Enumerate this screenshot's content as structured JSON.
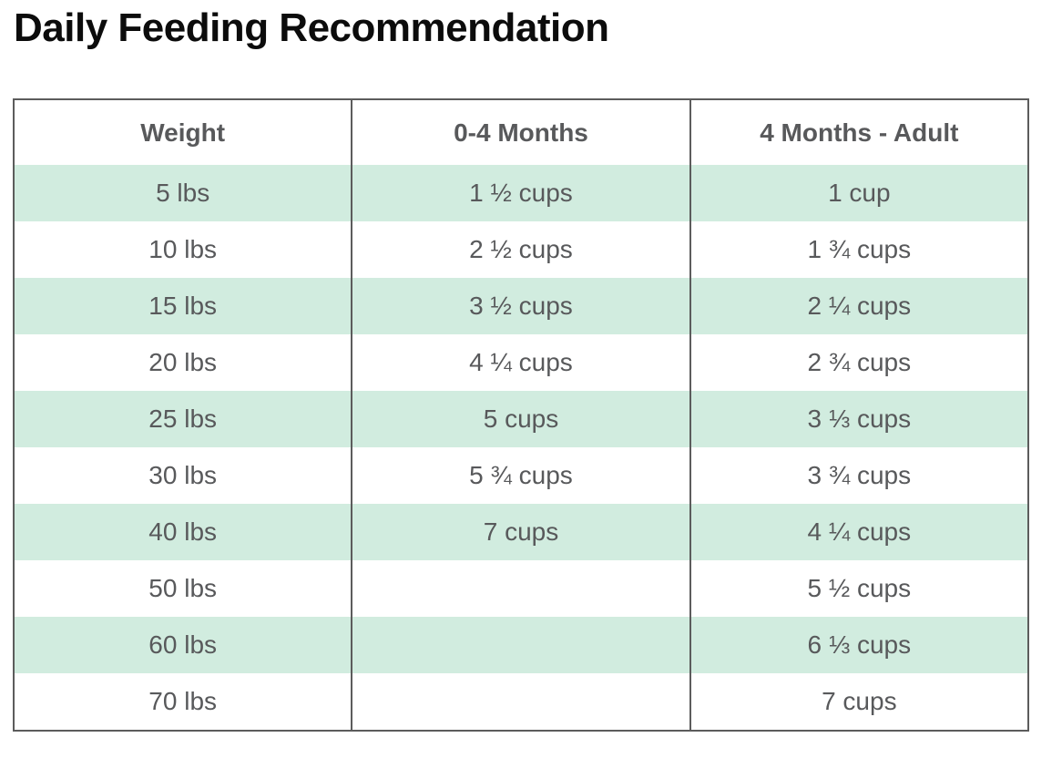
{
  "title": "Daily Feeding Recommendation",
  "chart_data": {
    "type": "table",
    "title": "Daily Feeding Recommendation",
    "columns": [
      "Weight",
      "0-4 Months",
      "4 Months - Adult"
    ],
    "rows": [
      [
        "5 lbs",
        "1 ½ cups",
        "1 cup"
      ],
      [
        "10 lbs",
        "2 ½ cups",
        "1 ¾ cups"
      ],
      [
        "15 lbs",
        "3 ½ cups",
        "2 ¼ cups"
      ],
      [
        "20 lbs",
        "4 ¼ cups",
        "2 ¾ cups"
      ],
      [
        "25 lbs",
        "5 cups",
        "3 ⅓ cups"
      ],
      [
        "30 lbs",
        "5 ¾ cups",
        "3 ¾ cups"
      ],
      [
        "40 lbs",
        "7 cups",
        "4 ¼ cups"
      ],
      [
        "50 lbs",
        "",
        "5 ½ cups"
      ],
      [
        "60 lbs",
        "",
        "6 ⅓ cups"
      ],
      [
        "70 lbs",
        "",
        "7 cups"
      ]
    ],
    "layout": {
      "stripe_style": "alternating rows, first data row tinted",
      "grid": "outer border and vertical column dividers only"
    }
  },
  "colors": {
    "stripe_green": "#d1ecdf",
    "border_gray": "#5c5c5c",
    "text_gray": "#58595b",
    "title_black": "#0c0c0c",
    "background": "#ffffff"
  }
}
